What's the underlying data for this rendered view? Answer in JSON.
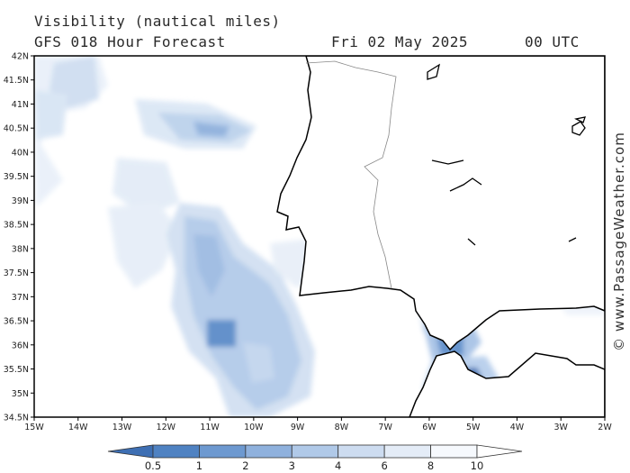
{
  "header": {
    "title": "Visibility (nautical miles)",
    "subtitle": "GFS 018 Hour Forecast",
    "date": "Fri 02 May 2025",
    "time": "00 UTC"
  },
  "credit": "© www.PassageWeather.com",
  "map": {
    "lat_labels": [
      "42N",
      "41.5N",
      "41N",
      "40.5N",
      "40N",
      "39.5N",
      "39N",
      "38.5N",
      "38N",
      "37.5N",
      "37N",
      "36.5N",
      "36N",
      "35.5N",
      "35N",
      "34.5N"
    ],
    "lon_labels": [
      "15W",
      "14W",
      "13W",
      "12W",
      "11W",
      "10W",
      "9W",
      "8W",
      "7W",
      "6W",
      "5W",
      "4W",
      "3W",
      "2W"
    ]
  },
  "legend": {
    "tick_labels": [
      "0.5",
      "1",
      "2",
      "3",
      "4",
      "6",
      "8",
      "10"
    ],
    "colors": [
      "#3e6fb3",
      "#4f82c2",
      "#6d99d0",
      "#8fb1dd",
      "#b0c9e8",
      "#cddcf0",
      "#e4ecf7",
      "#f6f9fd",
      "#ffffff"
    ]
  }
}
